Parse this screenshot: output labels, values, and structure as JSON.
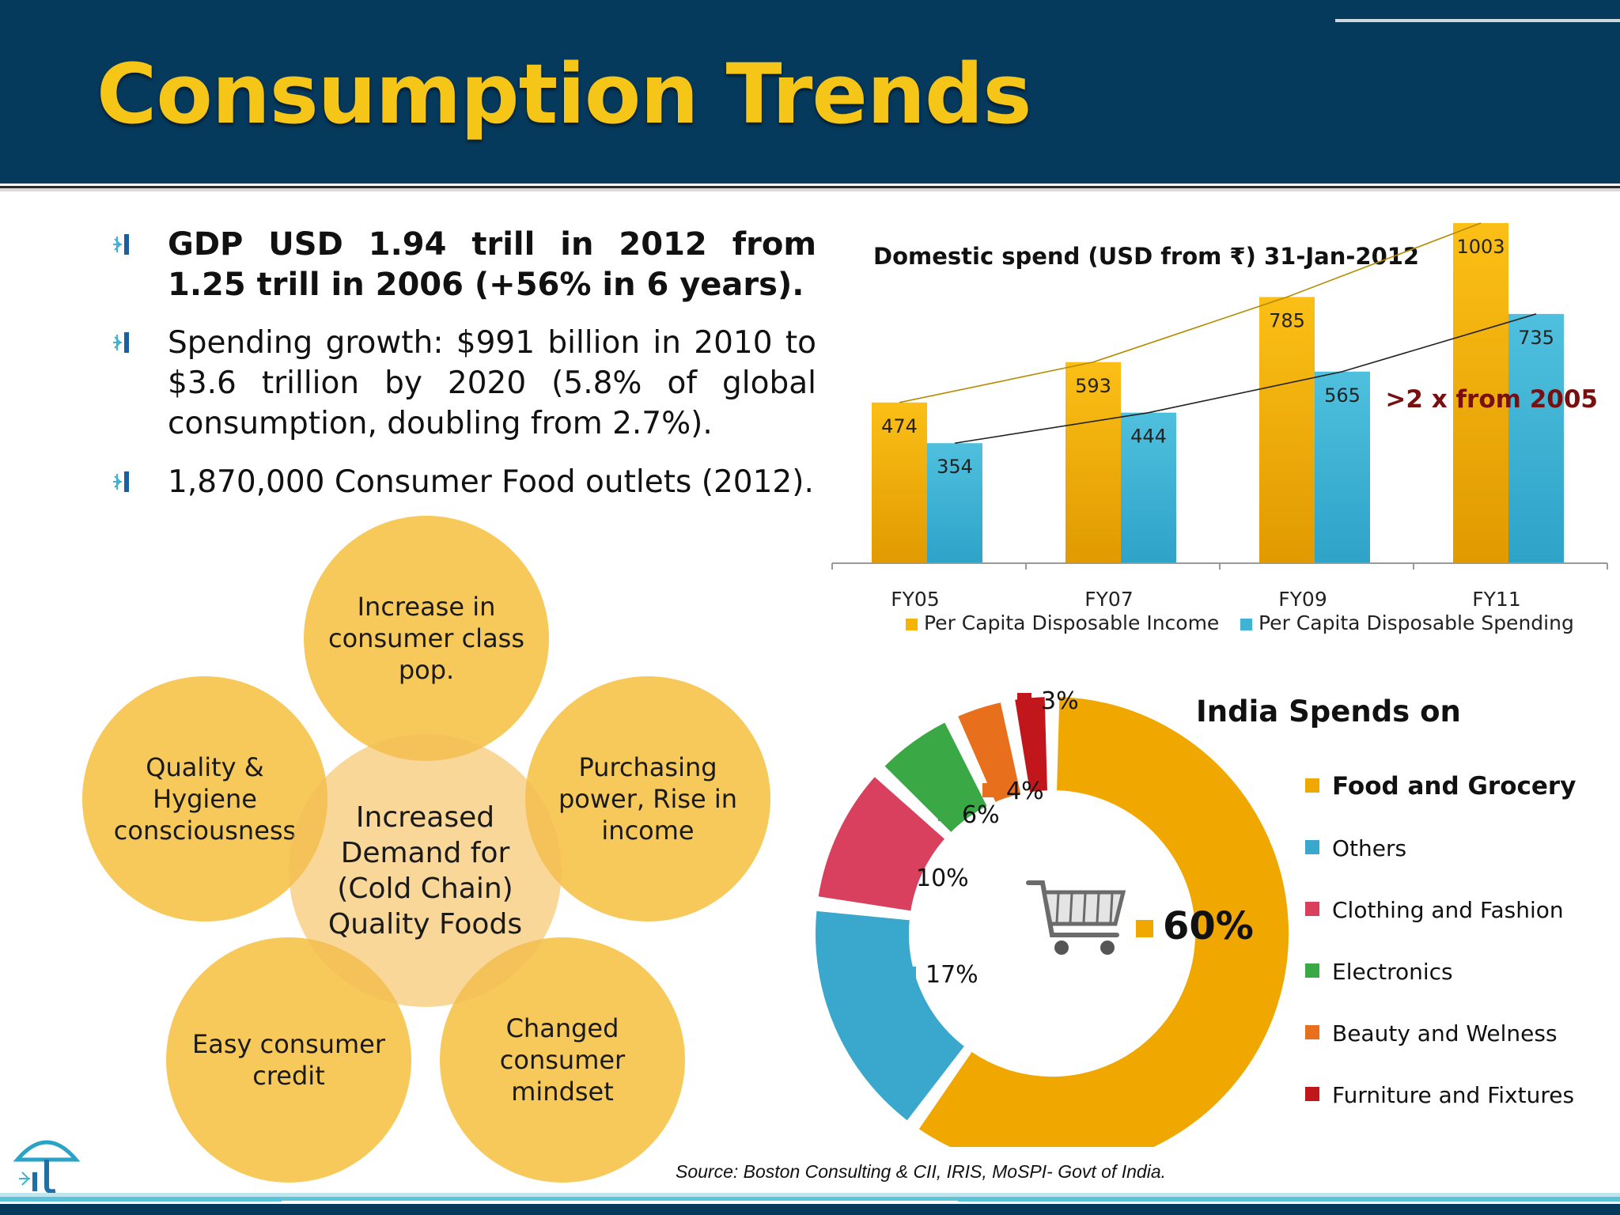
{
  "slide": {
    "title": "Consumption Trends",
    "source": "Source: Boston Consulting & CII, IRIS, MoSPI- Govt of India."
  },
  "colors": {
    "header_bg": "#063a5d",
    "title": "#f5c518",
    "income": "#f5b400",
    "spending": "#3fb3d6",
    "annotation": "#7a0f0f",
    "circle_fill": "#f4b41a"
  },
  "bullets": [
    {
      "text": "GDP USD 1.94 trill in 2012 from 1.25 trill in 2006 (+56% in 6 years)."
    },
    {
      "text": "Spending growth: $991 billion in 2010 to $3.6 trillion by 2020 (5.8% of global consumption, doubling from 2.7%)."
    },
    {
      "text": "1,870,000 Consumer Food outlets (2012)."
    }
  ],
  "circles": {
    "top": "Increase in consumer class pop.",
    "left": "Quality & Hygiene consciousness",
    "right": "Purchasing power, Rise in income",
    "bottom_left": "Easy consumer credit",
    "bottom_right": "Changed consumer mindset",
    "center": "Increased Demand for (Cold Chain) Quality Foods"
  },
  "chart_data": [
    {
      "type": "bar",
      "title": "Domestic spend (USD from ₹) 31-Jan-2012",
      "categories": [
        "FY05",
        "FY07",
        "FY09",
        "FY11"
      ],
      "series": [
        {
          "name": "Per Capita Disposable Income",
          "values": [
            474,
            593,
            785,
            1003
          ]
        },
        {
          "name": "Per Capita Disposable Spending",
          "values": [
            354,
            444,
            565,
            735
          ]
        }
      ],
      "annotation": ">2 x from 2005",
      "ylim": [
        0,
        1003
      ],
      "legend": "bottom",
      "grid": false
    },
    {
      "type": "pie",
      "title": "India Spends on",
      "labels": [
        "Food and Grocery",
        "Others",
        "Clothing and Fashion",
        "Electronics",
        "Beauty and Welness",
        "Furniture and Fixtures"
      ],
      "values": [
        60,
        17,
        10,
        6,
        4,
        3
      ],
      "value_labels": [
        "60%",
        "17%",
        "10%",
        "6%",
        "4%",
        "3%"
      ],
      "colors": [
        "#f0a800",
        "#3aa8cc",
        "#d8405e",
        "#3aa845",
        "#e86f1c",
        "#c0161c"
      ],
      "center_icon": "shopping-cart-icon",
      "legend": "right"
    }
  ]
}
